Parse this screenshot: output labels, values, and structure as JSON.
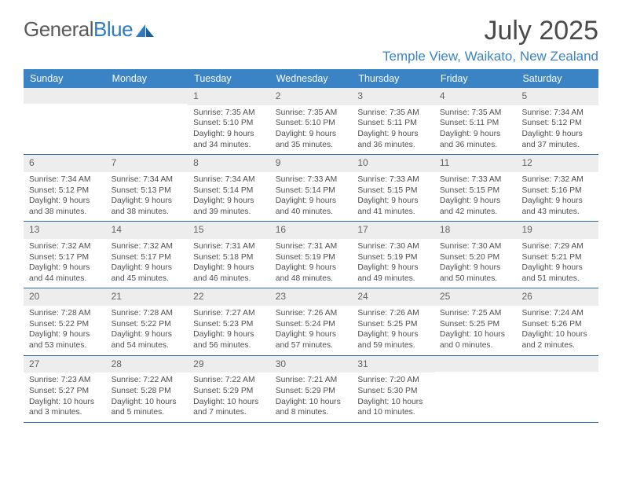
{
  "logo": {
    "text1": "General",
    "text2": "Blue"
  },
  "title": "July 2025",
  "location": "Temple View, Waikato, New Zealand",
  "colors": {
    "header_bg": "#3a83c4",
    "header_text": "#ffffff",
    "daynum_bg": "#ededed",
    "border": "#2f6fa8",
    "location_color": "#3a83c4"
  },
  "day_names": [
    "Sunday",
    "Monday",
    "Tuesday",
    "Wednesday",
    "Thursday",
    "Friday",
    "Saturday"
  ],
  "weeks": [
    [
      {
        "n": "",
        "sr": "",
        "ss": "",
        "dl": ""
      },
      {
        "n": "",
        "sr": "",
        "ss": "",
        "dl": ""
      },
      {
        "n": "1",
        "sr": "7:35 AM",
        "ss": "5:10 PM",
        "dl": "9 hours and 34 minutes."
      },
      {
        "n": "2",
        "sr": "7:35 AM",
        "ss": "5:10 PM",
        "dl": "9 hours and 35 minutes."
      },
      {
        "n": "3",
        "sr": "7:35 AM",
        "ss": "5:11 PM",
        "dl": "9 hours and 36 minutes."
      },
      {
        "n": "4",
        "sr": "7:35 AM",
        "ss": "5:11 PM",
        "dl": "9 hours and 36 minutes."
      },
      {
        "n": "5",
        "sr": "7:34 AM",
        "ss": "5:12 PM",
        "dl": "9 hours and 37 minutes."
      }
    ],
    [
      {
        "n": "6",
        "sr": "7:34 AM",
        "ss": "5:12 PM",
        "dl": "9 hours and 38 minutes."
      },
      {
        "n": "7",
        "sr": "7:34 AM",
        "ss": "5:13 PM",
        "dl": "9 hours and 38 minutes."
      },
      {
        "n": "8",
        "sr": "7:34 AM",
        "ss": "5:14 PM",
        "dl": "9 hours and 39 minutes."
      },
      {
        "n": "9",
        "sr": "7:33 AM",
        "ss": "5:14 PM",
        "dl": "9 hours and 40 minutes."
      },
      {
        "n": "10",
        "sr": "7:33 AM",
        "ss": "5:15 PM",
        "dl": "9 hours and 41 minutes."
      },
      {
        "n": "11",
        "sr": "7:33 AM",
        "ss": "5:15 PM",
        "dl": "9 hours and 42 minutes."
      },
      {
        "n": "12",
        "sr": "7:32 AM",
        "ss": "5:16 PM",
        "dl": "9 hours and 43 minutes."
      }
    ],
    [
      {
        "n": "13",
        "sr": "7:32 AM",
        "ss": "5:17 PM",
        "dl": "9 hours and 44 minutes."
      },
      {
        "n": "14",
        "sr": "7:32 AM",
        "ss": "5:17 PM",
        "dl": "9 hours and 45 minutes."
      },
      {
        "n": "15",
        "sr": "7:31 AM",
        "ss": "5:18 PM",
        "dl": "9 hours and 46 minutes."
      },
      {
        "n": "16",
        "sr": "7:31 AM",
        "ss": "5:19 PM",
        "dl": "9 hours and 48 minutes."
      },
      {
        "n": "17",
        "sr": "7:30 AM",
        "ss": "5:19 PM",
        "dl": "9 hours and 49 minutes."
      },
      {
        "n": "18",
        "sr": "7:30 AM",
        "ss": "5:20 PM",
        "dl": "9 hours and 50 minutes."
      },
      {
        "n": "19",
        "sr": "7:29 AM",
        "ss": "5:21 PM",
        "dl": "9 hours and 51 minutes."
      }
    ],
    [
      {
        "n": "20",
        "sr": "7:28 AM",
        "ss": "5:22 PM",
        "dl": "9 hours and 53 minutes."
      },
      {
        "n": "21",
        "sr": "7:28 AM",
        "ss": "5:22 PM",
        "dl": "9 hours and 54 minutes."
      },
      {
        "n": "22",
        "sr": "7:27 AM",
        "ss": "5:23 PM",
        "dl": "9 hours and 56 minutes."
      },
      {
        "n": "23",
        "sr": "7:26 AM",
        "ss": "5:24 PM",
        "dl": "9 hours and 57 minutes."
      },
      {
        "n": "24",
        "sr": "7:26 AM",
        "ss": "5:25 PM",
        "dl": "9 hours and 59 minutes."
      },
      {
        "n": "25",
        "sr": "7:25 AM",
        "ss": "5:25 PM",
        "dl": "10 hours and 0 minutes."
      },
      {
        "n": "26",
        "sr": "7:24 AM",
        "ss": "5:26 PM",
        "dl": "10 hours and 2 minutes."
      }
    ],
    [
      {
        "n": "27",
        "sr": "7:23 AM",
        "ss": "5:27 PM",
        "dl": "10 hours and 3 minutes."
      },
      {
        "n": "28",
        "sr": "7:22 AM",
        "ss": "5:28 PM",
        "dl": "10 hours and 5 minutes."
      },
      {
        "n": "29",
        "sr": "7:22 AM",
        "ss": "5:29 PM",
        "dl": "10 hours and 7 minutes."
      },
      {
        "n": "30",
        "sr": "7:21 AM",
        "ss": "5:29 PM",
        "dl": "10 hours and 8 minutes."
      },
      {
        "n": "31",
        "sr": "7:20 AM",
        "ss": "5:30 PM",
        "dl": "10 hours and 10 minutes."
      },
      {
        "n": "",
        "sr": "",
        "ss": "",
        "dl": ""
      },
      {
        "n": "",
        "sr": "",
        "ss": "",
        "dl": ""
      }
    ]
  ],
  "labels": {
    "sunrise": "Sunrise:",
    "sunset": "Sunset:",
    "daylight": "Daylight:"
  }
}
